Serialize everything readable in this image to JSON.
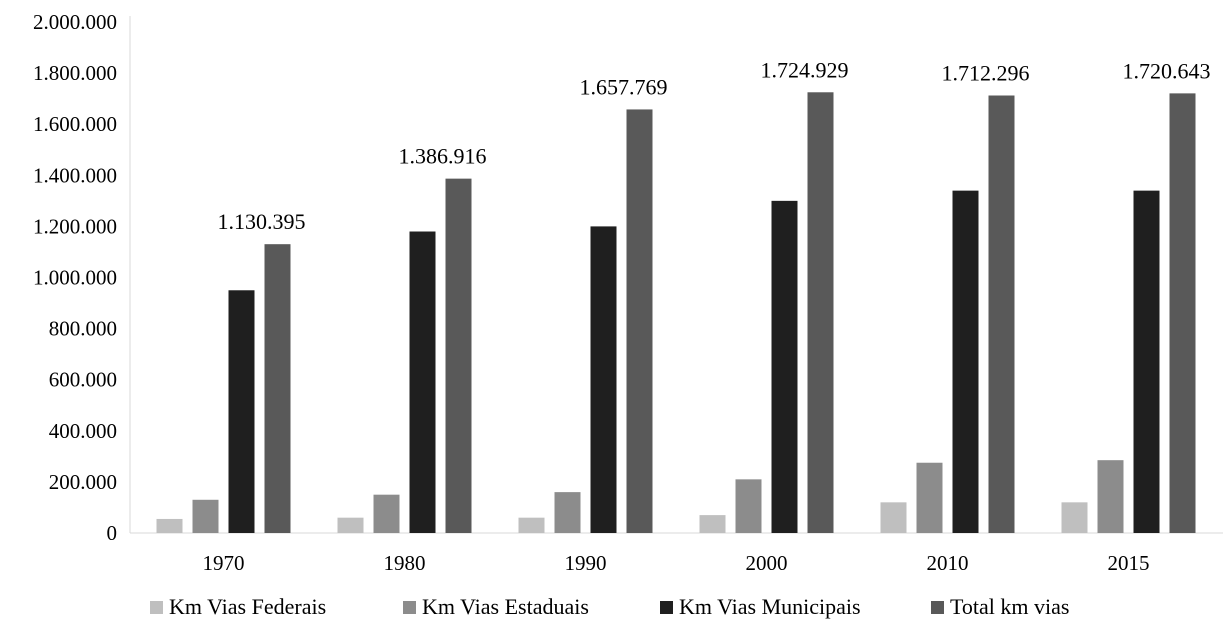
{
  "chart_data": {
    "type": "bar",
    "categories": [
      "1970",
      "1980",
      "1990",
      "2000",
      "2010",
      "2015"
    ],
    "series": [
      {
        "name": "Km Vias Federais",
        "color": "#BFBFBF",
        "values": [
          55000,
          60000,
          60000,
          70000,
          120000,
          120000
        ]
      },
      {
        "name": "Km Vias Estaduais",
        "color": "#8C8C8C",
        "values": [
          130000,
          150000,
          160000,
          210000,
          275000,
          285000
        ]
      },
      {
        "name": "Km Vias Municipais",
        "color": "#1F1F1F",
        "values": [
          950000,
          1180000,
          1200000,
          1300000,
          1340000,
          1340000
        ]
      },
      {
        "name": "Total km vias",
        "color": "#595959",
        "values": [
          1130395,
          1386916,
          1657769,
          1724929,
          1712296,
          1720643
        ]
      }
    ],
    "data_labels": [
      "1.130.395",
      "1.386.916",
      "1.657.769",
      "1.724.929",
      "1.712.296",
      "1.720.643"
    ],
    "y_ticks": [
      "0",
      "200.000",
      "400.000",
      "600.000",
      "800.000",
      "1.000.000",
      "1.200.000",
      "1.400.000",
      "1.600.000",
      "1.800.000",
      "2.000.000"
    ],
    "ylim": [
      0,
      2000000
    ],
    "grid": false,
    "legend_position": "bottom",
    "title": "",
    "xlabel": "",
    "ylabel": ""
  }
}
